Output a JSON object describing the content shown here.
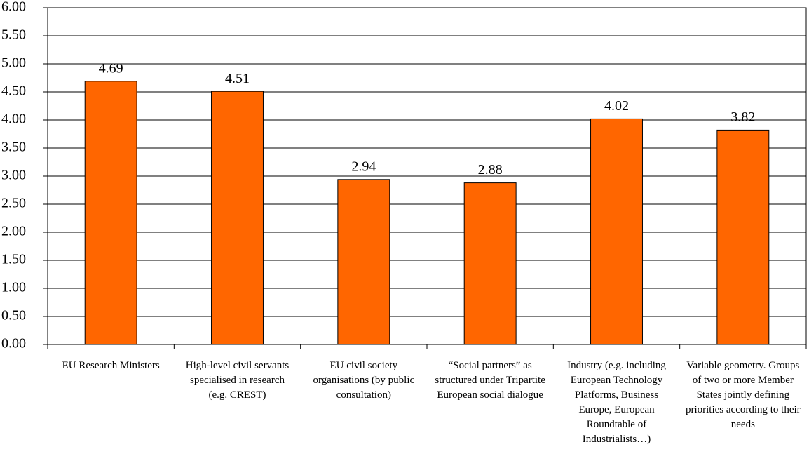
{
  "chart_data": {
    "type": "bar",
    "categories": [
      "EU Research Ministers",
      "High-level civil servants specialised in research  (e.g. CREST)",
      "EU civil society organisations  (by public consultation)",
      "“Social partners” as structured under Tripartite European social dialogue",
      "Industry (e.g. including European Technology Platforms, Business Europe, European Roundtable of Industrialists…)",
      "Variable geometry. Groups of two or more Member States jointly defining priorities according to their needs"
    ],
    "values": [
      4.69,
      4.51,
      2.94,
      2.88,
      4.02,
      3.82
    ],
    "color": "#ff6600",
    "ylim": [
      0,
      6
    ],
    "yticks": [
      {
        "value": 0,
        "label": "0.00"
      },
      {
        "value": 0.5,
        "label": "0.50"
      },
      {
        "value": 1,
        "label": "1.00"
      },
      {
        "value": 1.5,
        "label": "1.50"
      },
      {
        "value": 2,
        "label": "2.00"
      },
      {
        "value": 2.5,
        "label": "2.50"
      },
      {
        "value": 3,
        "label": "3.00"
      },
      {
        "value": 3.5,
        "label": "3.50"
      },
      {
        "value": 4,
        "label": "4.00"
      },
      {
        "value": 4.5,
        "label": "4.50"
      },
      {
        "value": 5,
        "label": "5.00"
      },
      {
        "value": 5.5,
        "label": "5.50"
      },
      {
        "value": 6,
        "label": "6.00"
      }
    ],
    "grid": true
  }
}
